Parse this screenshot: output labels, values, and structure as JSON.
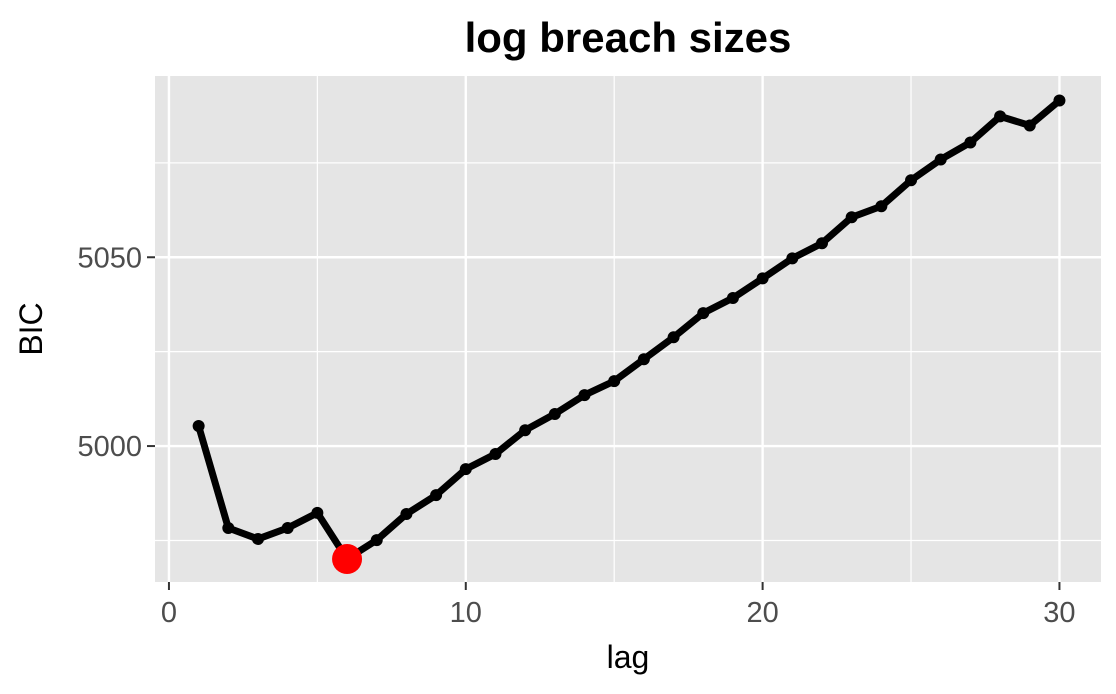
{
  "chart_data": {
    "type": "line",
    "title": "log breach sizes",
    "xlabel": "lag",
    "ylabel": "BIC",
    "xlim": [
      -0.47,
      31.4
    ],
    "ylim": [
      4964,
      5098
    ],
    "xticks": [
      0,
      10,
      20,
      30
    ],
    "yticks": [
      5000,
      5050
    ],
    "xminor": [
      5,
      15,
      25
    ],
    "yminor": [
      4975,
      5025,
      5075
    ],
    "grid": true,
    "x": [
      1,
      2,
      3,
      4,
      5,
      6,
      7,
      8,
      9,
      10,
      11,
      12,
      13,
      14,
      15,
      16,
      17,
      18,
      19,
      20,
      21,
      22,
      23,
      24,
      25,
      26,
      27,
      28,
      29,
      30
    ],
    "y": [
      5005.3,
      4978.3,
      4975.4,
      4978.3,
      4982.3,
      4970.1,
      4975.1,
      4982.0,
      4987.0,
      4993.9,
      4997.9,
      5004.2,
      5008.5,
      5013.5,
      5017.2,
      5023.0,
      5028.8,
      5035.2,
      5039.2,
      5044.4,
      5049.7,
      5053.7,
      5060.6,
      5063.5,
      5070.4,
      5075.9,
      5080.4,
      5087.3,
      5084.9,
      5091.5
    ],
    "highlight": {
      "x": 6,
      "y": 4970.1,
      "color": "#ff0000"
    },
    "line_color": "#000000",
    "panel_color": "#e5e5e5"
  }
}
